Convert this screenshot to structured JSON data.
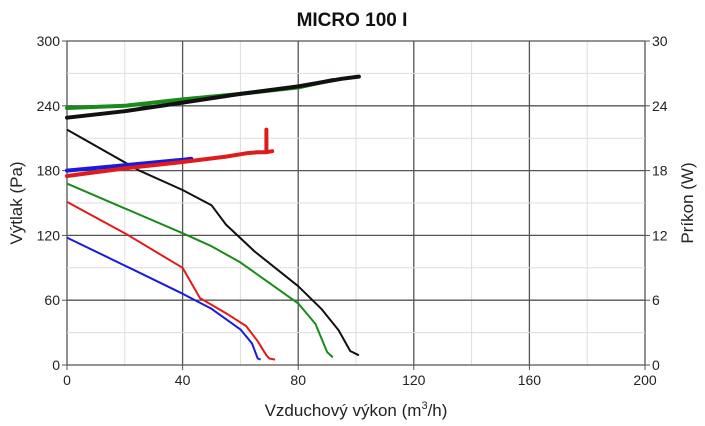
{
  "chart_data": {
    "type": "line",
    "title": "MICRO 100 I",
    "xlabel": "Vzduchový výkon (m",
    "xlabel_sup": "3",
    "xlabel_suffix": "/h)",
    "ylabel": "Výtlak (Pa)",
    "y2label": "Príkon (W)",
    "xlim": [
      0,
      200
    ],
    "ylim": [
      0,
      300
    ],
    "y2lim": [
      0,
      30
    ],
    "xticks": [
      0,
      40,
      80,
      120,
      160,
      200
    ],
    "yticks": [
      0,
      60,
      120,
      180,
      240,
      300
    ],
    "y2ticks": [
      0,
      6,
      12,
      18,
      24,
      30
    ],
    "grid": true,
    "legend": "none",
    "pressure_series": [
      {
        "name": "pressure-blue",
        "color": "#1a1adc",
        "x": [
          0,
          20,
          40,
          50,
          60,
          64,
          66,
          67
        ],
        "y": [
          118,
          92,
          66,
          52,
          33,
          20,
          6,
          5
        ]
      },
      {
        "name": "pressure-red",
        "color": "#e01b1b",
        "x": [
          0,
          20,
          40,
          46,
          55,
          62,
          66,
          69,
          70,
          72
        ],
        "y": [
          151,
          122,
          90,
          62,
          48,
          36,
          22,
          9,
          6,
          5
        ]
      },
      {
        "name": "pressure-green",
        "color": "#1a8a1a",
        "x": [
          0,
          20,
          40,
          50,
          60,
          70,
          80,
          86,
          90,
          92
        ],
        "y": [
          168,
          145,
          122,
          110,
          95,
          76,
          57,
          38,
          12,
          7
        ]
      },
      {
        "name": "pressure-black",
        "color": "#111111",
        "x": [
          0,
          25,
          40,
          50,
          55,
          65,
          80,
          88,
          94,
          98,
          101
        ],
        "y": [
          218,
          180,
          162,
          148,
          130,
          105,
          73,
          52,
          32,
          13,
          9
        ]
      }
    ],
    "power_series": [
      {
        "name": "power-green",
        "color": "#1a8a1a",
        "x": [
          0,
          20,
          40,
          60,
          80,
          92
        ],
        "y": [
          23.8,
          24.0,
          24.6,
          25.1,
          25.7,
          26.4
        ]
      },
      {
        "name": "power-black",
        "color": "#111111",
        "x": [
          0,
          20,
          40,
          60,
          80,
          95,
          101
        ],
        "y": [
          22.9,
          23.5,
          24.3,
          25.1,
          25.8,
          26.5,
          26.7
        ]
      },
      {
        "name": "power-blue",
        "color": "#1a1adc",
        "x": [
          0,
          20,
          40,
          43
        ],
        "y": [
          18.0,
          18.5,
          19.0,
          19.1
        ]
      },
      {
        "name": "power-red",
        "color": "#e01b1b",
        "x": [
          0,
          20,
          40,
          55,
          62,
          66,
          69,
          69,
          69,
          71
        ],
        "y": [
          17.5,
          18.2,
          18.8,
          19.3,
          19.6,
          19.7,
          19.7,
          21.8,
          19.7,
          19.8
        ]
      }
    ]
  }
}
